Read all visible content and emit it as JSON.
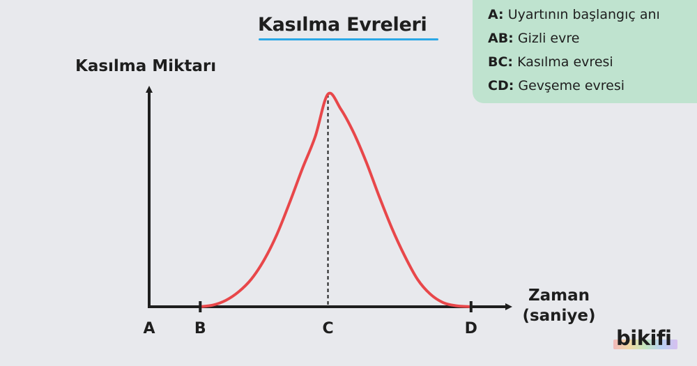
{
  "chart_data": {
    "type": "line",
    "title": "Kasılma Evreleri",
    "ylabel": "Kasılma Miktarı",
    "xlabel_line1": "Zaman",
    "xlabel_line2": "(saniye)",
    "x_markers": [
      "A",
      "B",
      "C",
      "D"
    ],
    "x_marker_values": [
      0,
      1,
      3.5,
      6.3
    ],
    "series": [
      {
        "color": "#e8474a",
        "x": [
          1,
          1.25,
          1.5,
          1.75,
          2,
          2.25,
          2.5,
          2.75,
          3,
          3.25,
          3.5,
          3.75,
          4,
          4.25,
          4.5,
          4.75,
          5,
          5.25,
          5.5,
          5.75,
          6,
          6.3
        ],
        "y": [
          0,
          0.8,
          3,
          7,
          13,
          22,
          34,
          49,
          65,
          80,
          100,
          93,
          82,
          68,
          52,
          37,
          24,
          13,
          6,
          2,
          0.5,
          0
        ]
      }
    ],
    "peak_marker": {
      "x": 3.5,
      "y": 100,
      "style": "dashed"
    },
    "xlim": [
      0,
      7.5
    ],
    "ylim": [
      0,
      100
    ],
    "grid": false
  },
  "legend": {
    "items": [
      {
        "key": "A:",
        "text": "Uyartının başlangıç anı"
      },
      {
        "key": "AB:",
        "text": "Gizli evre"
      },
      {
        "key": "BC:",
        "text": "Kasılma evresi"
      },
      {
        "key": "CD:",
        "text": "Gevşeme evresi"
      }
    ]
  },
  "colors": {
    "axis": "#1e1e1e",
    "curve": "#e8474a",
    "legend_bg": "#bfe3cf",
    "title_underline": "#2aa7e6"
  },
  "logo": {
    "text": "bikifi"
  }
}
